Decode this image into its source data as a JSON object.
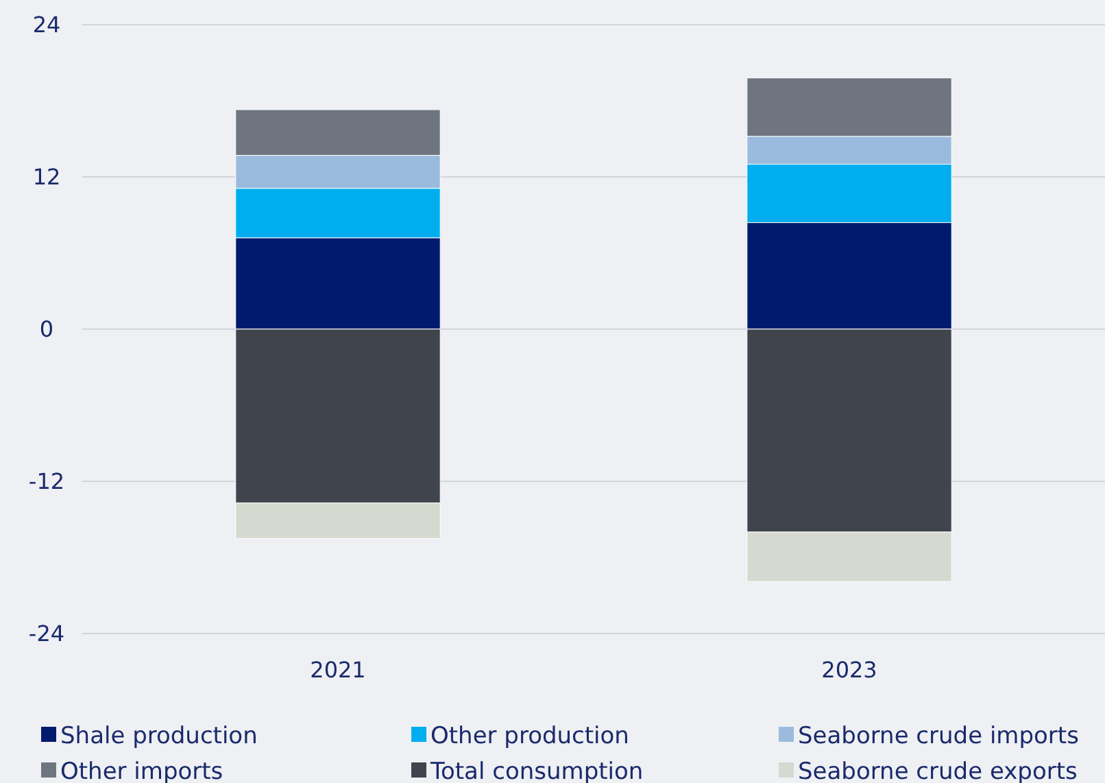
{
  "chart_data": {
    "type": "bar",
    "stacked": true,
    "categories": [
      "2021",
      "2023"
    ],
    "series": [
      {
        "name": "Shale production",
        "color": "#001a6e",
        "values": [
          7.2,
          8.4
        ]
      },
      {
        "name": "Other production",
        "color": "#00aeef",
        "values": [
          3.9,
          4.6
        ]
      },
      {
        "name": "Seaborne crude imports",
        "color": "#9bbbde",
        "values": [
          2.6,
          2.2
        ]
      },
      {
        "name": "Other imports",
        "color": "#6e7580",
        "values": [
          3.6,
          4.6
        ]
      },
      {
        "name": "Total consumption",
        "color": "#40444d",
        "values": [
          -13.7,
          -16.0
        ]
      },
      {
        "name": "Seaborne crude exports",
        "color": "#d6d9cf",
        "values": [
          -2.8,
          -3.9
        ]
      }
    ],
    "ylim": [
      -24,
      24
    ],
    "yticks": [
      -24,
      -12,
      0,
      12,
      24
    ],
    "grid": "y",
    "legend": "bottom"
  }
}
